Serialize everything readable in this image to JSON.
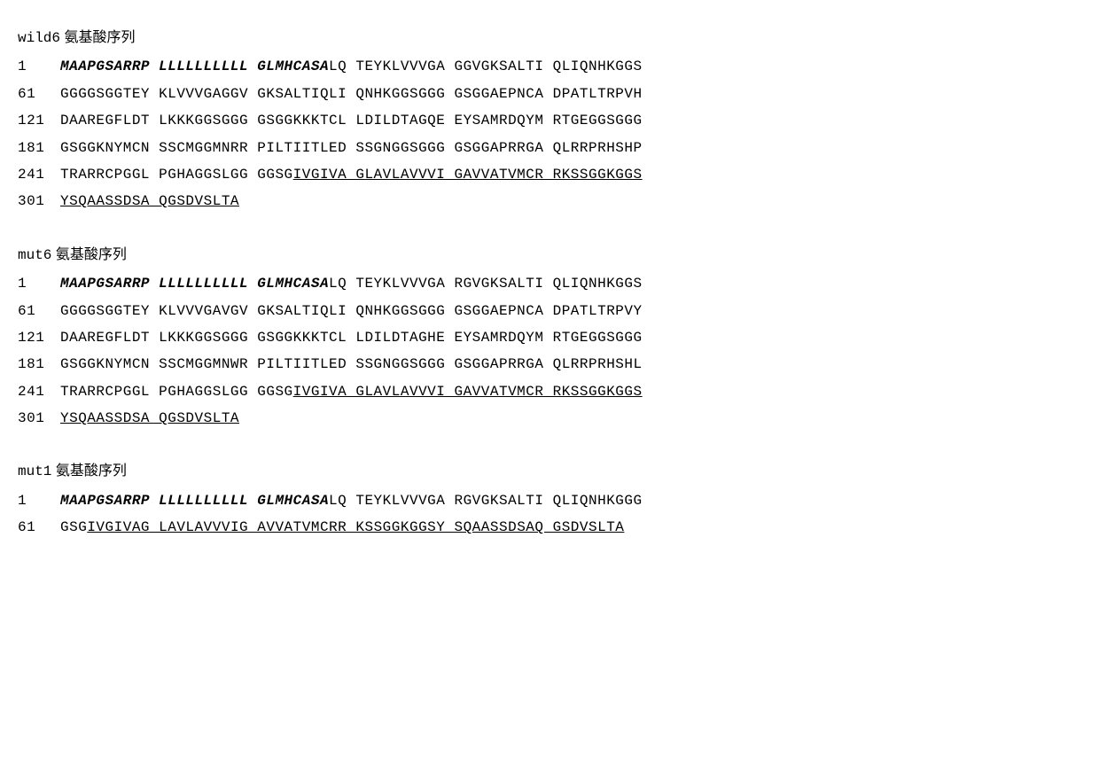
{
  "sequences": [
    {
      "name": "wild6",
      "title_cn": "氨基酸序列",
      "lines": [
        {
          "pos": "1",
          "segs": [
            {
              "t": "MAAPGSARRP LLLLLLLLLL GLMHCASA",
              "style": "bi"
            },
            {
              "t": "LQ TEYKLVVVGA GGVGKSALTI QLIQNHKGGS",
              "style": ""
            }
          ]
        },
        {
          "pos": "61",
          "segs": [
            {
              "t": "GGGGSGGTEY KLVVVGAGGV GKSALTIQLI QNHKGGSGGG GSGGAEPNCA DPATLTRPVH",
              "style": ""
            }
          ]
        },
        {
          "pos": "121",
          "segs": [
            {
              "t": "DAAREGFLDT LKKKGGSGGG GSGGKKKTCL LDILDTAGQE EYSAMRDQYM RTGEGGSGGG",
              "style": ""
            }
          ]
        },
        {
          "pos": "181",
          "segs": [
            {
              "t": "GSGGKNYMCN SSCMGGMNRR PILTIITLED SSGNGGSGGG GSGGAPRRGA QLRRPRHSHP",
              "style": ""
            }
          ]
        },
        {
          "pos": "241",
          "segs": [
            {
              "t": "TRARRCPGGL PGHAGGSLGG GGSG",
              "style": ""
            },
            {
              "t": "IVGIVA GLAVLAVVVI GAVVATVMCR RKSSGGKGGS",
              "style": "ul"
            }
          ]
        },
        {
          "pos": "301",
          "segs": [
            {
              "t": "YSQAASSDSA QGSDVSLTA",
              "style": "ul"
            }
          ]
        }
      ]
    },
    {
      "name": "mut6",
      "title_cn": "氨基酸序列",
      "lines": [
        {
          "pos": "1",
          "segs": [
            {
              "t": "MAAPGSARRP LLLLLLLLLL GLMHCASA",
              "style": "bi"
            },
            {
              "t": "LQ TEYKLVVVGA RGVGKSALTI QLIQNHKGGS",
              "style": ""
            }
          ]
        },
        {
          "pos": "61",
          "segs": [
            {
              "t": "GGGGSGGTEY KLVVVGAVGV GKSALTIQLI QNHKGGSGGG GSGGAEPNCA DPATLTRPVY",
              "style": ""
            }
          ]
        },
        {
          "pos": "121",
          "segs": [
            {
              "t": "DAAREGFLDT LKKKGGSGGG GSGGKKKTCL LDILDTAGHE EYSAMRDQYM RTGEGGSGGG",
              "style": ""
            }
          ]
        },
        {
          "pos": "181",
          "segs": [
            {
              "t": "GSGGKNYMCN SSCMGGMNWR PILTIITLED SSGNGGSGGG GSGGAPRRGA QLRRPRHSHL",
              "style": ""
            }
          ]
        },
        {
          "pos": "241",
          "segs": [
            {
              "t": "TRARRCPGGL PGHAGGSLGG GGSG",
              "style": ""
            },
            {
              "t": "IVGIVA GLAVLAVVVI GAVVATVMCR RKSSGGKGGS",
              "style": "ul"
            }
          ]
        },
        {
          "pos": "301",
          "segs": [
            {
              "t": "YSQAASSDSA QGSDVSLTA",
              "style": "ul"
            }
          ]
        }
      ]
    },
    {
      "name": "mut1",
      "title_cn": "氨基酸序列",
      "lines": [
        {
          "pos": "1",
          "segs": [
            {
              "t": "MAAPGSARRP LLLLLLLLLL GLMHCASA",
              "style": "bi"
            },
            {
              "t": "LQ TEYKLVVVGA RGVGKSALTI QLIQNHKGGG",
              "style": ""
            }
          ]
        },
        {
          "pos": "61",
          "segs": [
            {
              "t": "GSG",
              "style": ""
            },
            {
              "t": "IVGIVAG LAVLAVVVIG AVVATVMCRR KSSGGKGGSY SQAASSDSAQ GSDVSLTA",
              "style": "ul"
            }
          ]
        }
      ]
    }
  ]
}
